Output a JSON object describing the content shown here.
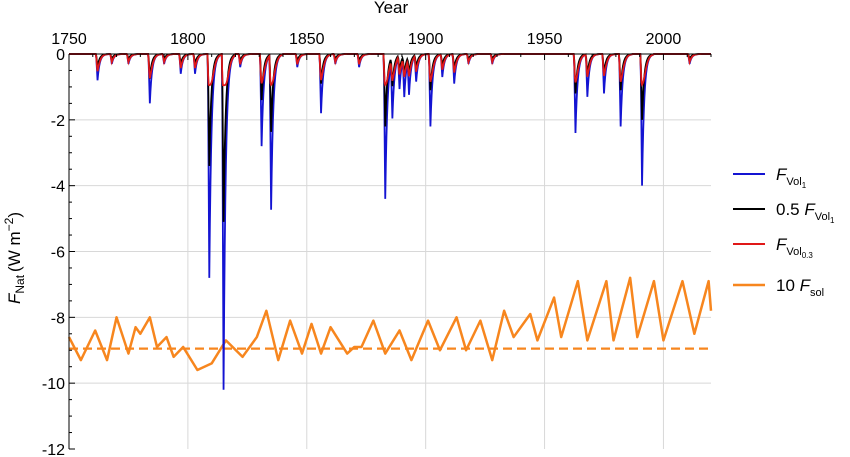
{
  "chart_data": {
    "type": "line",
    "xlabel": "Year",
    "ylabel_main": "F",
    "ylabel_sub": "Nat",
    "ylabel_units": "(W m",
    "ylabel_exp": "−2",
    "ylabel_close": ")",
    "xlim": [
      1750,
      2020
    ],
    "ylim": [
      -12,
      0
    ],
    "x_ticks": [
      1750,
      1800,
      1850,
      1900,
      1950,
      2000
    ],
    "y_ticks": [
      0,
      -2,
      -4,
      -6,
      -8,
      -10,
      -12
    ],
    "y_tick_labels": [
      "0",
      "-2",
      "-4",
      "-6",
      "-8",
      "-10",
      "-12"
    ],
    "grid": true,
    "legend_position": "right",
    "legend": [
      {
        "main": "F",
        "sub": "Vol",
        "subsub": "1",
        "prefix": ""
      },
      {
        "main": "F",
        "sub": "Vol",
        "subsub": "1",
        "prefix": "0.5 "
      },
      {
        "main": "F",
        "sub": "Vol",
        "subsub": "0.3",
        "prefix": ""
      },
      {
        "main": "F",
        "sub": "sol",
        "subsub": "",
        "prefix": "10 "
      }
    ],
    "colors": {
      "vol1": "#1414d2",
      "vol_half": "#000000",
      "vol03": "#e01818",
      "sol": "#f7861e",
      "grid": "#d8d8d8"
    },
    "solar_mean": -8.95,
    "volcanic_events": [
      {
        "year": 1762,
        "peak": -0.8
      },
      {
        "year": 1768,
        "peak": -0.3
      },
      {
        "year": 1775,
        "peak": -0.3
      },
      {
        "year": 1784,
        "peak": -1.5
      },
      {
        "year": 1790,
        "peak": -0.3
      },
      {
        "year": 1797,
        "peak": -0.6
      },
      {
        "year": 1803,
        "peak": -0.6
      },
      {
        "year": 1809,
        "peak": -6.8
      },
      {
        "year": 1815,
        "peak": -10.2
      },
      {
        "year": 1822,
        "peak": -0.4
      },
      {
        "year": 1831,
        "peak": -2.8
      },
      {
        "year": 1835,
        "peak": -4.7
      },
      {
        "year": 1846,
        "peak": -0.4
      },
      {
        "year": 1856,
        "peak": -1.8
      },
      {
        "year": 1862,
        "peak": -0.3
      },
      {
        "year": 1872,
        "peak": -0.4
      },
      {
        "year": 1883,
        "peak": -4.4
      },
      {
        "year": 1886,
        "peak": -1.8
      },
      {
        "year": 1889,
        "peak": -1.0
      },
      {
        "year": 1891,
        "peak": -1.2
      },
      {
        "year": 1893,
        "peak": -1.1
      },
      {
        "year": 1896,
        "peak": -0.8
      },
      {
        "year": 1902,
        "peak": -2.2
      },
      {
        "year": 1907,
        "peak": -0.7
      },
      {
        "year": 1912,
        "peak": -0.9
      },
      {
        "year": 1918,
        "peak": -0.3
      },
      {
        "year": 1928,
        "peak": -0.3
      },
      {
        "year": 1963,
        "peak": -2.4
      },
      {
        "year": 1968,
        "peak": -1.3
      },
      {
        "year": 1975,
        "peak": -1.2
      },
      {
        "year": 1982,
        "peak": -2.2
      },
      {
        "year": 1991,
        "peak": -4.0
      },
      {
        "year": 2011,
        "peak": -0.3
      }
    ],
    "solar_series": {
      "name": "10 F_sol",
      "x": [
        1750,
        1755,
        1761,
        1766,
        1770,
        1775,
        1778,
        1780,
        1784,
        1787,
        1791,
        1794,
        1798,
        1804,
        1810,
        1816,
        1823,
        1829,
        1833,
        1838,
        1843,
        1848,
        1852,
        1856,
        1860,
        1867,
        1870,
        1873,
        1878,
        1883,
        1889,
        1894,
        1901,
        1906,
        1913,
        1917,
        1923,
        1928,
        1933,
        1937,
        1944,
        1947,
        1954,
        1957,
        1964,
        1968,
        1976,
        1979,
        1986,
        1989,
        1996,
        2000,
        2008,
        2013,
        2019,
        2020
      ],
      "y": [
        -8.6,
        -9.3,
        -8.4,
        -9.3,
        -8.0,
        -9.1,
        -8.3,
        -8.5,
        -8.0,
        -8.9,
        -8.6,
        -9.2,
        -8.9,
        -9.6,
        -9.4,
        -8.7,
        -9.2,
        -8.6,
        -7.8,
        -9.3,
        -8.1,
        -9.1,
        -8.2,
        -9.1,
        -8.3,
        -9.1,
        -8.9,
        -8.9,
        -8.1,
        -9.1,
        -8.4,
        -9.3,
        -8.1,
        -9.0,
        -8.0,
        -9.0,
        -8.1,
        -9.3,
        -7.8,
        -8.6,
        -7.9,
        -8.7,
        -7.4,
        -8.6,
        -6.9,
        -8.7,
        -6.9,
        -8.7,
        -6.8,
        -8.6,
        -6.9,
        -8.7,
        -6.9,
        -8.5,
        -6.9,
        -7.8
      ]
    }
  }
}
